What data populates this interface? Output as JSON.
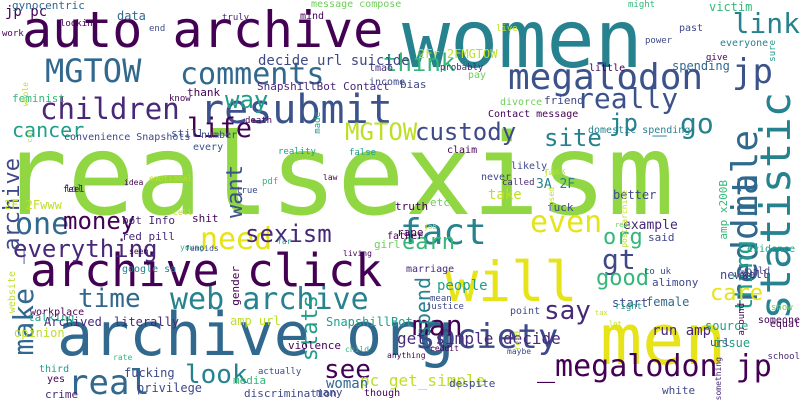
{
  "cloud": {
    "palette": {
      "dark_purple": "#440154",
      "purple": "#482878",
      "indigo": "#3e4989",
      "blue": "#31688e",
      "teal": "#26828e",
      "green_teal": "#1f9e89",
      "green": "#35b779",
      "light_green": "#6ece58",
      "lime": "#90d743",
      "yellow": "#fde725"
    },
    "words": [
      {
        "text": "realsexism",
        "color": "#90d743"
      },
      {
        "text": "women",
        "color": "#26828e"
      },
      {
        "text": "men",
        "color": "#e6e419"
      },
      {
        "text": "archive org",
        "color": "#31688e"
      },
      {
        "text": "auto archive",
        "color": "#440154"
      },
      {
        "text": "archive click",
        "color": "#440154"
      },
      {
        "text": "resubmit",
        "color": "#3b528b"
      },
      {
        "text": "will",
        "color": "#e6e419"
      },
      {
        "text": "MGTOW",
        "color": "#31688e"
      },
      {
        "text": "comments",
        "color": "#31688e"
      },
      {
        "text": "megalodon",
        "color": "#3b528b"
      },
      {
        "text": "jp",
        "color": "#3b528b"
      },
      {
        "text": "children",
        "color": "#482878"
      },
      {
        "text": "really",
        "color": "#3b528b"
      },
      {
        "text": "society",
        "color": "#3e4989"
      },
      {
        "text": "_megalodon jp",
        "color": "#440154"
      },
      {
        "text": "statistic",
        "color": "#26828e"
      },
      {
        "text": "reddit",
        "color": "#31688e"
      },
      {
        "text": "male",
        "color": "#31688e"
      },
      {
        "text": "fact",
        "color": "#26828e"
      },
      {
        "text": "web archive",
        "color": "#26828e"
      },
      {
        "text": "need",
        "color": "#e6e419"
      },
      {
        "text": "even",
        "color": "#e6e419"
      },
      {
        "text": "gt",
        "color": "#3e4989"
      },
      {
        "text": "time",
        "color": "#31688e"
      },
      {
        "text": "real",
        "color": "#31688e"
      },
      {
        "text": "make",
        "color": "#31688e"
      },
      {
        "text": "one",
        "color": "#31688e"
      },
      {
        "text": "go",
        "color": "#26828e"
      },
      {
        "text": "life",
        "color": "#440154"
      },
      {
        "text": "link",
        "color": "#26828e"
      },
      {
        "text": "think",
        "color": "#35b779"
      },
      {
        "text": "way",
        "color": "#1f9e89"
      },
      {
        "text": "MGTOW",
        "color": "#bddf26"
      },
      {
        "text": "custody",
        "color": "#3e4989"
      },
      {
        "text": "site",
        "color": "#26828e"
      },
      {
        "text": "jp _",
        "color": "#26828e"
      },
      {
        "text": "cancer",
        "color": "#1f9e89"
      },
      {
        "text": "want",
        "color": "#3b528b"
      },
      {
        "text": "money",
        "color": "#440154"
      },
      {
        "text": "sexism",
        "color": "#482878"
      },
      {
        "text": "everything",
        "color": "#482878"
      },
      {
        "text": "earn",
        "color": "#35b779"
      },
      {
        "text": "org",
        "color": "#35b779"
      },
      {
        "text": "thing",
        "color": "#1f9e89"
      },
      {
        "text": "care",
        "color": "#e6e419"
      },
      {
        "text": "say",
        "color": "#482878"
      },
      {
        "text": "man",
        "color": "#440154"
      },
      {
        "text": "look",
        "color": "#26828e"
      },
      {
        "text": "see",
        "color": "#440154"
      },
      {
        "text": "stats",
        "color": "#1f9e89"
      },
      {
        "text": "spend",
        "color": "#26828e"
      },
      {
        "text": "good",
        "color": "#35b779"
      },
      {
        "text": "_archive",
        "color": "#3e4989"
      },
      {
        "text": "pc get_simple",
        "color": "#bddf26"
      },
      {
        "text": "get_simple decide",
        "color": "#482878"
      },
      {
        "text": "run amp",
        "color": "#482878"
      },
      {
        "text": "woman",
        "color": "#31688e"
      },
      {
        "text": "fucking",
        "color": "#3e4989"
      },
      {
        "text": "privilege",
        "color": "#3e4989"
      },
      {
        "text": "SnapshillBot",
        "color": "#1f9e89"
      },
      {
        "text": "amp url",
        "color": "#bddf26"
      },
      {
        "text": "Archived",
        "color": "#482878"
      },
      {
        "text": "literally",
        "color": "#482878"
      },
      {
        "text": "data",
        "color": "#31688e"
      },
      {
        "text": "jp pc",
        "color": "#440154"
      },
      {
        "text": "gynocentric",
        "color": "#31688e"
      },
      {
        "text": "decide url suicide",
        "color": "#3e4989"
      },
      {
        "text": "SnapshillBot Contact",
        "color": "#482878"
      },
      {
        "text": "Contact message",
        "color": "#440154"
      },
      {
        "text": "bot Info",
        "color": "#482878"
      },
      {
        "text": "red pill",
        "color": "#482878"
      },
      {
        "text": "shit",
        "color": "#440154"
      },
      {
        "text": "feminist",
        "color": "#35b779"
      },
      {
        "text": "thank",
        "color": "#440154"
      },
      {
        "text": "convenience Snapshots",
        "color": "#3e4989"
      },
      {
        "text": "still",
        "color": "#3b528b"
      },
      {
        "text": "every",
        "color": "#3b528b"
      },
      {
        "text": "people",
        "color": "#1f9e89"
      },
      {
        "text": "example",
        "color": "#482878"
      },
      {
        "text": "issue",
        "color": "#1f9e89"
      },
      {
        "text": "start",
        "color": "#3e4989"
      },
      {
        "text": "female",
        "color": "#31688e"
      },
      {
        "text": "news",
        "color": "#3e4989"
      },
      {
        "text": "spending",
        "color": "#31688e"
      },
      {
        "text": "take",
        "color": "#bddf26"
      },
      {
        "text": "better",
        "color": "#3e4989"
      },
      {
        "text": "2F 2Fwww",
        "color": "#bddf26"
      },
      {
        "text": "3A 2F",
        "color": "#26828e"
      },
      {
        "text": "amp x200B",
        "color": "#35b779"
      },
      {
        "text": "source",
        "color": "#1f9e89"
      },
      {
        "text": "url",
        "color": "#3e4989"
      },
      {
        "text": "well",
        "color": "#482878"
      },
      {
        "text": "victim",
        "color": "#35b779"
      },
      {
        "text": "everyone",
        "color": "#26828e"
      },
      {
        "text": "message compose",
        "color": "#6ece58"
      },
      {
        "text": "2Fr 2FMGTOW",
        "color": "#bddf26"
      },
      {
        "text": "lmao",
        "color": "#482878"
      },
      {
        "text": "income",
        "color": "#3e4989"
      },
      {
        "text": "divorce",
        "color": "#6ece58"
      },
      {
        "text": "domestic spending",
        "color": "#26828e"
      },
      {
        "text": "alimony",
        "color": "#3e4989"
      },
      {
        "text": "justice",
        "color": "#3e4989"
      },
      {
        "text": "marriage",
        "color": "#482878"
      },
      {
        "text": "father",
        "color": "#440154"
      },
      {
        "text": "truth",
        "color": "#440154"
      },
      {
        "text": "girl",
        "color": "#6ece58"
      },
      {
        "text": "rape",
        "color": "#440154"
      },
      {
        "text": "violence",
        "color": "#440154"
      },
      {
        "text": "workplace",
        "color": "#440154"
      },
      {
        "text": "opinion",
        "color": "#bddf26"
      },
      {
        "text": "talking",
        "color": "#1f9e89"
      },
      {
        "text": "website",
        "color": "#bddf26"
      },
      {
        "text": "gender",
        "color": "#440154"
      },
      {
        "text": "google sa",
        "color": "#26828e"
      },
      {
        "text": "evidence",
        "color": "#1f9e89"
      },
      {
        "text": "world",
        "color": "#3e4989"
      },
      {
        "text": "equal",
        "color": "#440154"
      },
      {
        "text": "show",
        "color": "#6ece58"
      },
      {
        "text": "someone",
        "color": "#440154"
      },
      {
        "text": "school",
        "color": "#482878"
      },
      {
        "text": "white",
        "color": "#3e4989"
      },
      {
        "text": "despite",
        "color": "#3e4989"
      },
      {
        "text": "actually",
        "color": "#3e4989"
      },
      {
        "text": "media",
        "color": "#35b779"
      },
      {
        "text": "discrimination",
        "color": "#3e4989"
      },
      {
        "text": "many",
        "color": "#3e4989"
      },
      {
        "text": "though",
        "color": "#440154"
      },
      {
        "text": "yes",
        "color": "#440154"
      },
      {
        "text": "crime",
        "color": "#482878"
      },
      {
        "text": "third",
        "color": "#1f9e89"
      },
      {
        "text": "little",
        "color": "#440154"
      },
      {
        "text": "friend",
        "color": "#3e4989"
      },
      {
        "text": "pay",
        "color": "#6ece58"
      },
      {
        "text": "probably",
        "color": "#482878"
      },
      {
        "text": "bias",
        "color": "#3e4989"
      },
      {
        "text": "called",
        "color": "#482878"
      },
      {
        "text": "never",
        "color": "#3e4989"
      },
      {
        "text": "claim",
        "color": "#440154"
      },
      {
        "text": "likely",
        "color": "#3e4989"
      },
      {
        "text": "risk",
        "color": "#bddf26"
      },
      {
        "text": "etc",
        "color": "#6ece58"
      },
      {
        "text": "said",
        "color": "#3e4989"
      },
      {
        "text": "fuck",
        "color": "#3e4989"
      },
      {
        "text": "co uk",
        "color": "#3e4989"
      },
      {
        "text": "mean",
        "color": "#3e4989"
      },
      {
        "text": "right",
        "color": "#1f9e89"
      },
      {
        "text": "point",
        "color": "#3e4989"
      },
      {
        "text": "lol",
        "color": "#3e4989"
      },
      {
        "text": "feel",
        "color": "#440154"
      },
      {
        "text": "truly",
        "color": "#482878"
      },
      {
        "text": "mind",
        "color": "#440154"
      },
      {
        "text": "live",
        "color": "#bddf26"
      },
      {
        "text": "end",
        "color": "#3e4989"
      },
      {
        "text": "looking",
        "color": "#440154"
      },
      {
        "text": "work",
        "color": "#440154"
      },
      {
        "text": "might",
        "color": "#35b779"
      },
      {
        "text": "past",
        "color": "#3e4989"
      },
      {
        "text": "give",
        "color": "#440154"
      },
      {
        "text": "power",
        "color": "#3e4989"
      },
      {
        "text": "sure",
        "color": "#1f9e89"
      },
      {
        "text": "know",
        "color": "#440154"
      },
      {
        "text": "death",
        "color": "#440154"
      },
      {
        "text": "number",
        "color": "#3e4989"
      },
      {
        "text": "reality",
        "color": "#1f9e89"
      },
      {
        "text": "false",
        "color": "#1f9e89"
      },
      {
        "text": "idea",
        "color": "#440154"
      },
      {
        "text": "pdf",
        "color": "#35b779"
      },
      {
        "text": "true",
        "color": "#3e4989"
      },
      {
        "text": "young",
        "color": "#35b779"
      },
      {
        "text": "femoids",
        "color": "#3e4989"
      },
      {
        "text": "living",
        "color": "#440154"
      },
      {
        "text": "far",
        "color": "#1f9e89"
      },
      {
        "text": "law",
        "color": "#440154"
      },
      {
        "text": "made",
        "color": "#1f9e89"
      },
      {
        "text": "emotional",
        "color": "#bddf26"
      },
      {
        "text": "rate",
        "color": "#35b779"
      },
      {
        "text": "seem",
        "color": "#440154"
      },
      {
        "text": "child",
        "color": "#35b779"
      },
      {
        "text": "anything",
        "color": "#440154"
      },
      {
        "text": "ceddit",
        "color": "#440154"
      },
      {
        "text": "maybe",
        "color": "#3e4989"
      },
      {
        "text": "something",
        "color": "#482878"
      },
      {
        "text": "around",
        "color": "#440154"
      },
      {
        "text": "post archive",
        "color": "#bddf26"
      },
      {
        "text": "read",
        "color": "#bddf26"
      },
      {
        "text": "whole",
        "color": "#bddf26"
      },
      {
        "text": "can",
        "color": "#bddf26"
      },
      {
        "text": "cell",
        "color": "#bddf26"
      },
      {
        "text": "used",
        "color": "#bddf26"
      },
      {
        "text": "job",
        "color": "#bddf26"
      },
      {
        "text": "job",
        "color": "#bddf26"
      },
      {
        "text": "real",
        "color": "#6ece58"
      },
      {
        "text": "tax",
        "color": "#bddf26"
      },
      {
        "text": "lot",
        "color": "#bddf26"
      }
    ]
  }
}
